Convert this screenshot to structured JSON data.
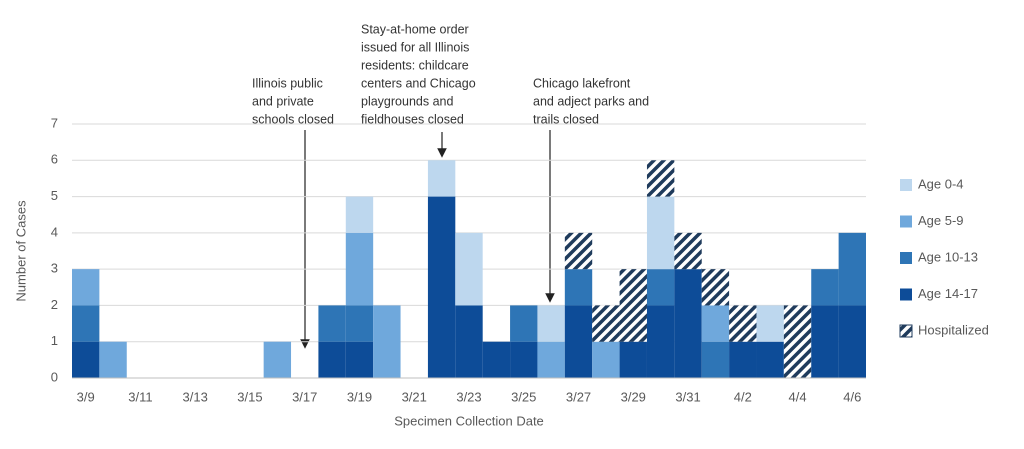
{
  "chart_data": {
    "type": "stacked_bar",
    "x_label": "Specimen Collection Date",
    "y_label": "Number of Cases",
    "categories": [
      "3/9",
      null,
      "3/11",
      null,
      "3/13",
      null,
      "3/15",
      null,
      "3/17",
      null,
      "3/19",
      null,
      "3/21",
      null,
      "3/23",
      null,
      "3/25",
      null,
      "3/27",
      null,
      "3/29",
      null,
      "3/31",
      null,
      "4/2",
      null,
      "4/4",
      null,
      "4/6"
    ],
    "series": [
      {
        "name": "Age 0-4",
        "color": "#bdd7ee",
        "values": [
          0,
          0,
          0,
          0,
          0,
          0,
          0,
          0,
          0,
          0,
          1,
          0,
          0,
          1,
          2,
          0,
          0,
          1,
          0,
          0,
          0,
          2,
          0,
          0,
          0,
          1,
          0,
          0,
          0
        ]
      },
      {
        "name": "Age 5-9",
        "color": "#6fa8dc",
        "values": [
          1,
          1,
          0,
          0,
          0,
          0,
          0,
          1,
          0,
          0,
          2,
          2,
          0,
          0,
          0,
          0,
          0,
          1,
          0,
          1,
          0,
          0,
          0,
          1,
          0,
          0,
          0,
          0,
          0
        ]
      },
      {
        "name": "Age 10-13",
        "color": "#2e75b6",
        "values": [
          1,
          0,
          0,
          0,
          0,
          0,
          0,
          0,
          0,
          1,
          1,
          0,
          0,
          0,
          0,
          0,
          1,
          0,
          1,
          0,
          0,
          1,
          0,
          1,
          0,
          0,
          0,
          1,
          2
        ]
      },
      {
        "name": "Age 14-17",
        "color": "#0d4c98",
        "values": [
          1,
          0,
          0,
          0,
          0,
          0,
          0,
          0,
          0,
          1,
          1,
          0,
          0,
          5,
          2,
          1,
          1,
          0,
          2,
          0,
          1,
          2,
          3,
          0,
          1,
          1,
          0,
          2,
          2
        ]
      },
      {
        "name": "Hospitalized",
        "color": "#1f3b5c",
        "hatch": true,
        "values": [
          0,
          0,
          0,
          0,
          0,
          0,
          0,
          0,
          0,
          0,
          0,
          0,
          0,
          0,
          0,
          0,
          0,
          0,
          1,
          1,
          2,
          1,
          1,
          1,
          1,
          0,
          2,
          0,
          0
        ]
      }
    ],
    "ylim": [
      0,
      7
    ],
    "yticks": [
      0,
      1,
      2,
      3,
      4,
      5,
      6,
      7
    ],
    "grid": true,
    "legend": "right",
    "annotations": [
      {
        "lines": [
          "Illinois public",
          "and private",
          "schools closed"
        ]
      },
      {
        "lines": [
          "Stay-at-home order",
          "issued for all Illinois",
          "residents: childcare",
          "centers and Chicago",
          "playgrounds and",
          "fieldhouses closed"
        ]
      },
      {
        "lines": [
          "Chicago lakefront",
          "and adject parks and",
          "trails closed"
        ]
      }
    ]
  }
}
